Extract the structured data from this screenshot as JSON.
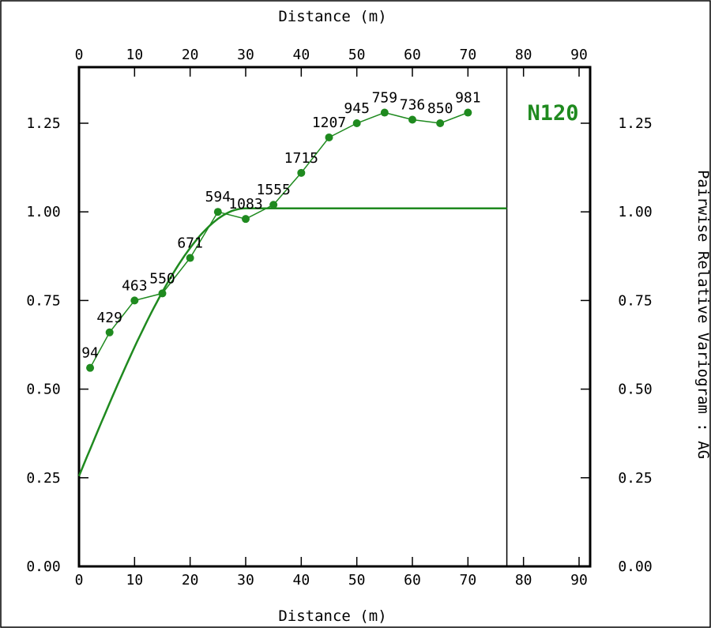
{
  "chart_data": {
    "type": "scatter",
    "xlabel": "Distance (m)",
    "ylabel": "Pairwise Relative Variogram : AG",
    "direction_label": "N120",
    "xlim": [
      0,
      92
    ],
    "ylim": [
      0,
      1.4
    ],
    "x_ticks": [
      "0",
      "10",
      "20",
      "30",
      "40",
      "50",
      "60",
      "70",
      "80",
      "90"
    ],
    "y_ticks": [
      "0.00",
      "0.25",
      "0.50",
      "0.75",
      "1.00",
      "1.25"
    ],
    "max_lag_distance": 77,
    "colors": {
      "series": "#1f8a1f",
      "axis": "#000000"
    },
    "series": [
      {
        "type": "line-markers",
        "x": [
          2,
          5.5,
          10,
          15,
          20,
          25,
          30,
          35,
          40,
          45,
          50,
          55,
          60,
          65,
          70
        ],
        "y": [
          0.56,
          0.66,
          0.75,
          0.77,
          0.87,
          1.0,
          0.98,
          1.02,
          1.11,
          1.21,
          1.25,
          1.28,
          1.26,
          1.25,
          1.28
        ],
        "pair_counts": [
          "94",
          "429",
          "463",
          "550",
          "671",
          "594",
          "1083",
          "1555",
          "1715",
          "1207",
          "945",
          "759",
          "736",
          "850",
          "981"
        ]
      },
      {
        "type": "model",
        "nugget": 0.255,
        "sill": 1.01,
        "range": 30,
        "x_end": 77
      }
    ]
  }
}
